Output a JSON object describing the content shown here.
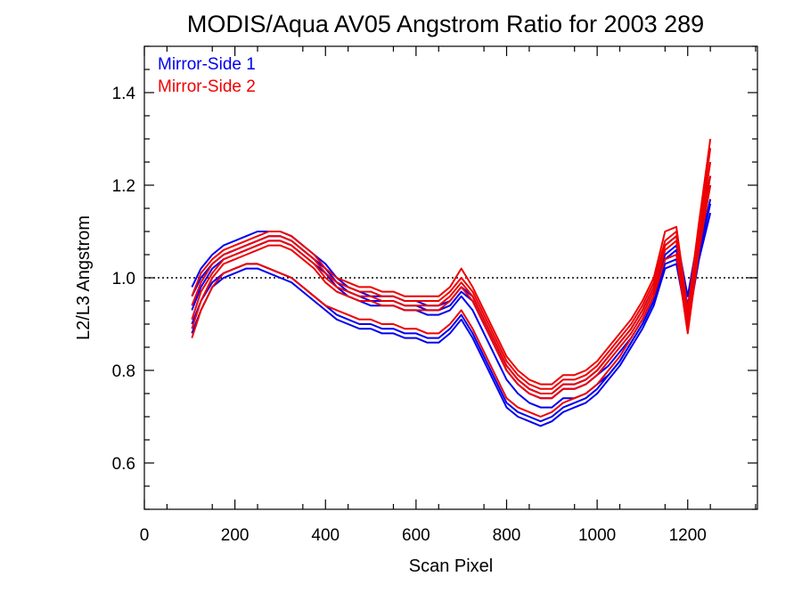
{
  "chart_data": {
    "type": "line",
    "title": "MODIS/Aqua AV05 Angstrom Ratio for 2003 289",
    "xlabel": "Scan Pixel",
    "ylabel": "L2/L3 Angstrom",
    "xlim": [
      0,
      1354
    ],
    "ylim": [
      0.5,
      1.5
    ],
    "x_ticks": [
      "0",
      "200",
      "400",
      "600",
      "800",
      "1000",
      "1200"
    ],
    "y_ticks": [
      "0.6",
      "0.8",
      "1.0",
      "1.2",
      "1.4"
    ],
    "reference_line": 1.0,
    "grid": false,
    "legend_position": "top-left",
    "legend": [
      {
        "label": "Mirror-Side 1",
        "color": "#0000ee"
      },
      {
        "label": "Mirror-Side 2",
        "color": "#ee0000"
      }
    ],
    "x": [
      105,
      125,
      150,
      175,
      200,
      225,
      250,
      275,
      300,
      325,
      350,
      375,
      400,
      425,
      450,
      475,
      500,
      525,
      550,
      575,
      600,
      625,
      650,
      675,
      700,
      725,
      750,
      775,
      800,
      825,
      850,
      875,
      900,
      925,
      950,
      975,
      1000,
      1025,
      1050,
      1075,
      1100,
      1125,
      1150,
      1175,
      1200,
      1225,
      1250
    ],
    "series": [
      {
        "group": "Mirror-Side 1",
        "color": "#0000ee",
        "values": [
          0.96,
          1.0,
          1.03,
          1.05,
          1.06,
          1.07,
          1.08,
          1.09,
          1.09,
          1.08,
          1.06,
          1.04,
          1.02,
          0.99,
          0.97,
          0.96,
          0.95,
          0.95,
          0.95,
          0.94,
          0.94,
          0.93,
          0.93,
          0.94,
          0.97,
          0.95,
          0.9,
          0.85,
          0.8,
          0.77,
          0.75,
          0.74,
          0.74,
          0.76,
          0.76,
          0.77,
          0.79,
          0.81,
          0.84,
          0.87,
          0.91,
          0.96,
          1.05,
          1.07,
          0.94,
          1.08,
          1.2
        ]
      },
      {
        "group": "Mirror-Side 1",
        "color": "#0000ee",
        "values": [
          0.93,
          0.98,
          1.02,
          1.04,
          1.05,
          1.06,
          1.07,
          1.08,
          1.08,
          1.07,
          1.05,
          1.03,
          1.01,
          0.98,
          0.96,
          0.95,
          0.94,
          0.94,
          0.94,
          0.93,
          0.93,
          0.92,
          0.92,
          0.93,
          0.96,
          0.93,
          0.88,
          0.83,
          0.78,
          0.75,
          0.73,
          0.72,
          0.72,
          0.74,
          0.74,
          0.75,
          0.77,
          0.79,
          0.82,
          0.86,
          0.9,
          0.95,
          1.04,
          1.06,
          0.92,
          1.06,
          1.17
        ]
      },
      {
        "group": "Mirror-Side 1",
        "color": "#0000ee",
        "values": [
          0.98,
          1.02,
          1.05,
          1.07,
          1.08,
          1.09,
          1.1,
          1.1,
          1.1,
          1.09,
          1.07,
          1.05,
          1.03,
          1.0,
          0.98,
          0.97,
          0.96,
          0.96,
          0.96,
          0.95,
          0.95,
          0.94,
          0.94,
          0.95,
          0.98,
          0.96,
          0.91,
          0.86,
          0.81,
          0.78,
          0.76,
          0.75,
          0.75,
          0.77,
          0.77,
          0.78,
          0.8,
          0.83,
          0.86,
          0.89,
          0.93,
          0.98,
          1.07,
          1.09,
          0.96,
          1.1,
          1.22
        ]
      },
      {
        "group": "Mirror-Side 1",
        "color": "#0000ee",
        "values": [
          0.88,
          0.93,
          0.98,
          1.0,
          1.01,
          1.02,
          1.02,
          1.01,
          1.0,
          0.99,
          0.97,
          0.95,
          0.93,
          0.91,
          0.9,
          0.89,
          0.89,
          0.88,
          0.88,
          0.87,
          0.87,
          0.86,
          0.86,
          0.88,
          0.91,
          0.87,
          0.82,
          0.77,
          0.72,
          0.7,
          0.69,
          0.68,
          0.69,
          0.71,
          0.72,
          0.73,
          0.75,
          0.78,
          0.81,
          0.85,
          0.89,
          0.94,
          1.02,
          1.03,
          0.9,
          1.04,
          1.14
        ]
      },
      {
        "group": "Mirror-Side 1",
        "color": "#0000ee",
        "values": [
          0.9,
          0.95,
          0.99,
          1.01,
          1.02,
          1.03,
          1.03,
          1.02,
          1.01,
          1.0,
          0.98,
          0.96,
          0.94,
          0.92,
          0.91,
          0.9,
          0.9,
          0.89,
          0.89,
          0.88,
          0.88,
          0.87,
          0.87,
          0.89,
          0.92,
          0.88,
          0.83,
          0.78,
          0.73,
          0.71,
          0.7,
          0.69,
          0.7,
          0.72,
          0.73,
          0.74,
          0.76,
          0.79,
          0.82,
          0.86,
          0.9,
          0.95,
          1.03,
          1.04,
          0.91,
          1.05,
          1.16
        ]
      },
      {
        "group": "Mirror-Side 2",
        "color": "#ee0000",
        "values": [
          0.94,
          0.99,
          1.03,
          1.05,
          1.06,
          1.07,
          1.08,
          1.09,
          1.09,
          1.08,
          1.06,
          1.04,
          1.01,
          0.99,
          0.98,
          0.97,
          0.97,
          0.96,
          0.96,
          0.95,
          0.95,
          0.95,
          0.95,
          0.97,
          1.0,
          0.97,
          0.92,
          0.87,
          0.82,
          0.79,
          0.77,
          0.76,
          0.76,
          0.78,
          0.78,
          0.79,
          0.81,
          0.84,
          0.87,
          0.9,
          0.94,
          0.99,
          1.08,
          1.1,
          0.92,
          1.1,
          1.28
        ]
      },
      {
        "group": "Mirror-Side 2",
        "color": "#ee0000",
        "values": [
          0.91,
          0.97,
          1.01,
          1.04,
          1.05,
          1.06,
          1.07,
          1.08,
          1.08,
          1.07,
          1.05,
          1.03,
          1.0,
          0.98,
          0.97,
          0.96,
          0.96,
          0.95,
          0.95,
          0.94,
          0.94,
          0.94,
          0.94,
          0.96,
          0.99,
          0.96,
          0.91,
          0.86,
          0.81,
          0.78,
          0.76,
          0.75,
          0.75,
          0.77,
          0.77,
          0.78,
          0.8,
          0.83,
          0.86,
          0.89,
          0.93,
          0.98,
          1.07,
          1.09,
          0.9,
          1.09,
          1.25
        ]
      },
      {
        "group": "Mirror-Side 2",
        "color": "#ee0000",
        "values": [
          0.96,
          1.01,
          1.04,
          1.06,
          1.07,
          1.08,
          1.09,
          1.1,
          1.1,
          1.09,
          1.07,
          1.05,
          1.02,
          1.0,
          0.99,
          0.98,
          0.98,
          0.97,
          0.97,
          0.96,
          0.96,
          0.96,
          0.96,
          0.98,
          1.02,
          0.98,
          0.93,
          0.88,
          0.83,
          0.8,
          0.78,
          0.77,
          0.77,
          0.79,
          0.79,
          0.8,
          0.82,
          0.85,
          0.88,
          0.91,
          0.95,
          1.0,
          1.1,
          1.11,
          0.93,
          1.12,
          1.3
        ]
      },
      {
        "group": "Mirror-Side 2",
        "color": "#ee0000",
        "values": [
          0.89,
          0.95,
          1.0,
          1.03,
          1.04,
          1.05,
          1.06,
          1.07,
          1.07,
          1.06,
          1.04,
          1.02,
          0.99,
          0.97,
          0.96,
          0.95,
          0.95,
          0.94,
          0.94,
          0.93,
          0.93,
          0.93,
          0.93,
          0.95,
          0.98,
          0.95,
          0.9,
          0.85,
          0.8,
          0.77,
          0.75,
          0.74,
          0.74,
          0.76,
          0.76,
          0.77,
          0.79,
          0.82,
          0.85,
          0.88,
          0.92,
          0.97,
          1.06,
          1.08,
          0.89,
          1.08,
          1.22
        ]
      },
      {
        "group": "Mirror-Side 2",
        "color": "#ee0000",
        "values": [
          0.87,
          0.93,
          0.98,
          1.01,
          1.02,
          1.03,
          1.03,
          1.02,
          1.01,
          1.0,
          0.98,
          0.96,
          0.94,
          0.93,
          0.92,
          0.91,
          0.91,
          0.9,
          0.9,
          0.89,
          0.89,
          0.88,
          0.88,
          0.9,
          0.93,
          0.89,
          0.84,
          0.79,
          0.74,
          0.72,
          0.71,
          0.7,
          0.71,
          0.73,
          0.74,
          0.75,
          0.77,
          0.8,
          0.83,
          0.87,
          0.91,
          0.96,
          1.04,
          1.05,
          0.88,
          1.06,
          1.2
        ]
      }
    ]
  }
}
